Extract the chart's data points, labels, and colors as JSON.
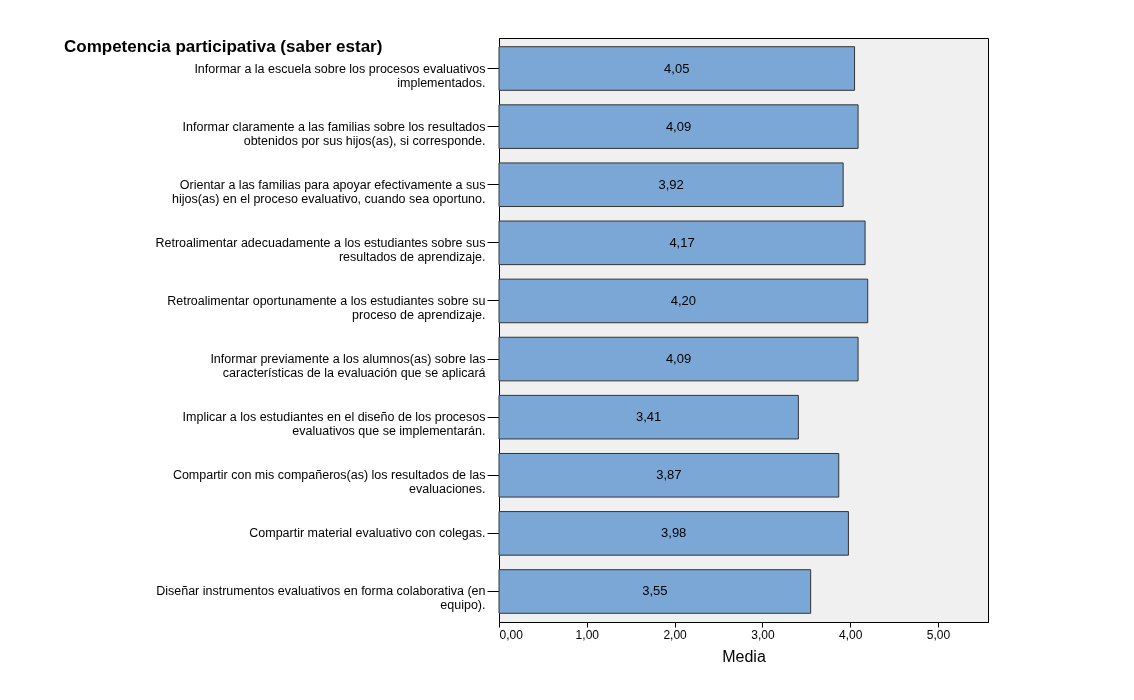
{
  "chart_data": {
    "type": "bar",
    "orientation": "horizontal",
    "title": "Competencia participativa (saber estar)",
    "xlabel": "Media",
    "categories": [
      "Informar a la escuela sobre los procesos evaluativos\nimplementados.",
      "Informar claramente a las familias sobre los resultados\nobtenidos por sus hijos(as), si corresponde.",
      "Orientar a las familias para apoyar efectivamente a sus\nhijos(as) en el proceso evaluativo, cuando sea oportuno.",
      "Retroalimentar adecuadamente a los estudiantes sobre sus\nresultados de aprendizaje.",
      "Retroalimentar oportunamente a los estudiantes sobre su\nproceso de aprendizaje.",
      "Informar previamente a los alumnos(as) sobre las\ncaracterísticas de la evaluación que se aplicará",
      "Implicar a los estudiantes en el diseño de los procesos\nevaluativos que se implementarán.",
      "Compartir con mis compañeros(as) los resultados de las\nevaluaciones.",
      "Compartir material evaluativo con colegas.",
      "Diseñar instrumentos evaluativos en forma colaborativa (en\nequipo)."
    ],
    "values": [
      4.05,
      4.09,
      3.92,
      4.17,
      4.2,
      4.09,
      3.41,
      3.87,
      3.98,
      3.55
    ],
    "value_labels": [
      "4,05",
      "4,09",
      "3,92",
      "4,17",
      "4,20",
      "4,09",
      "3,41",
      "3,87",
      "3,98",
      "3,55"
    ],
    "color": "#7ba7d7",
    "xlim": [
      0,
      5.57
    ],
    "xticks": [
      {
        "value": 0,
        "label": "0,00"
      },
      {
        "value": 1,
        "label": "1,00"
      },
      {
        "value": 2,
        "label": "2,00"
      },
      {
        "value": 3,
        "label": "3,00"
      },
      {
        "value": 4,
        "label": "4,00"
      },
      {
        "value": 5,
        "label": "5,00"
      }
    ],
    "grid": false
  }
}
